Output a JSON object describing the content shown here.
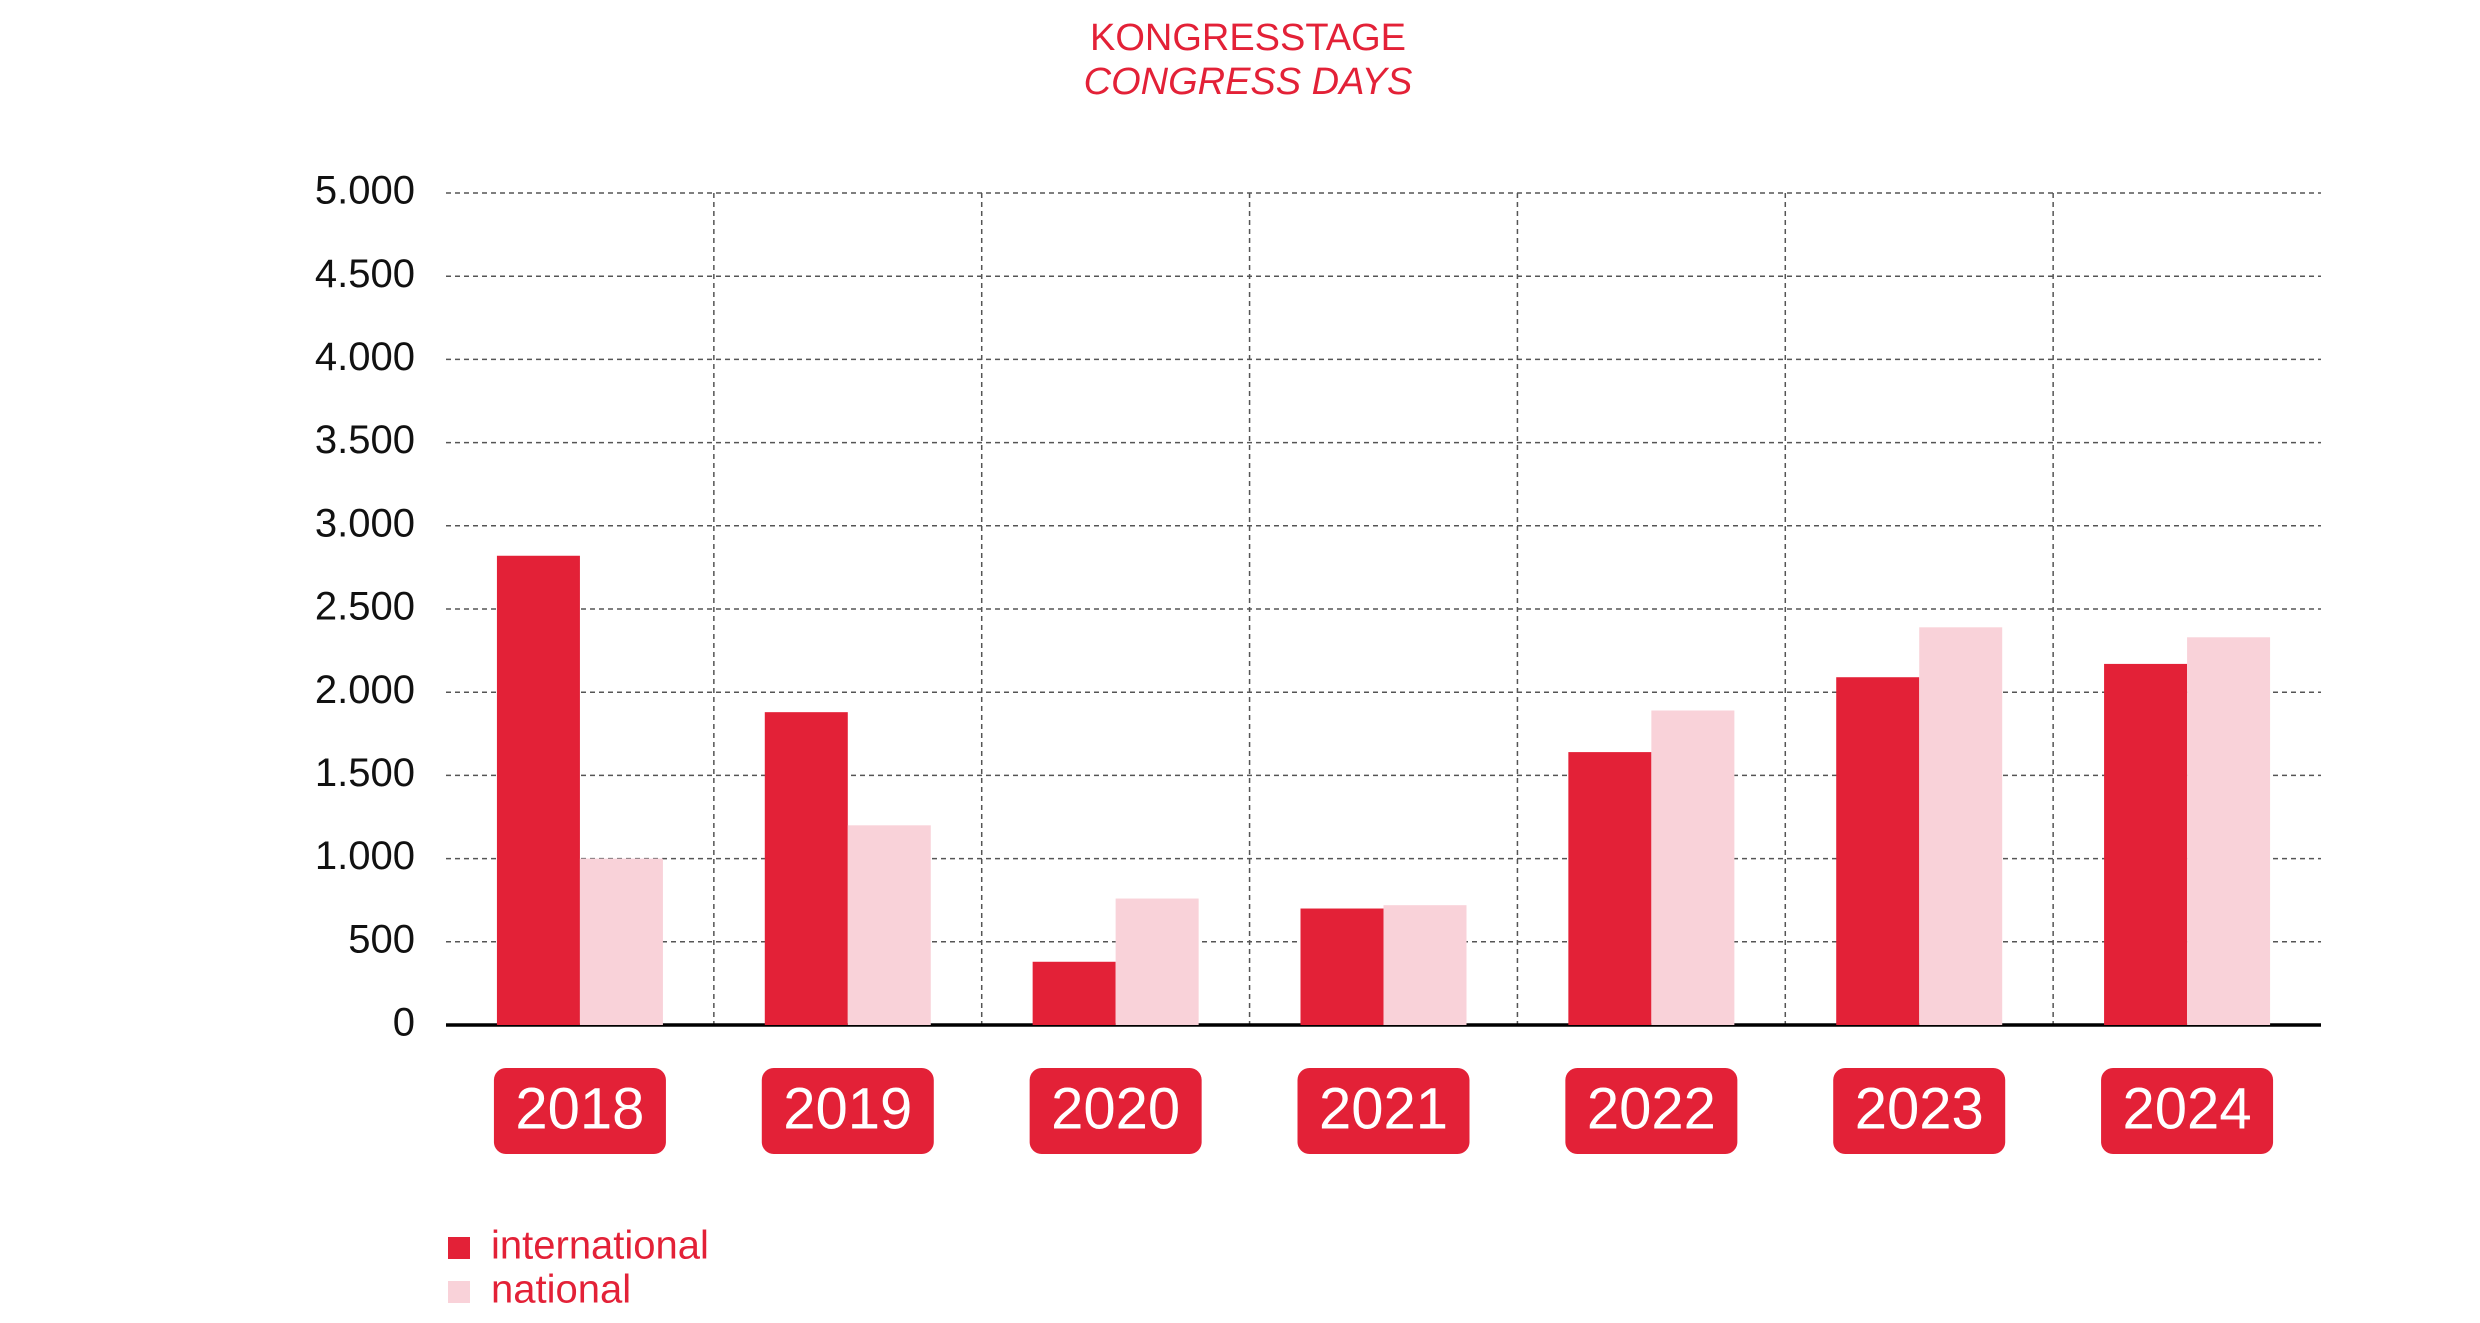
{
  "chart_data": {
    "type": "bar",
    "title": "KONGRESSTAGE",
    "subtitle": "CONGRESS DAYS",
    "categories": [
      "2018",
      "2019",
      "2020",
      "2021",
      "2022",
      "2023",
      "2024"
    ],
    "series": [
      {
        "name": "international",
        "color": "#e32137",
        "values": [
          2820,
          1880,
          380,
          700,
          1640,
          2090,
          2170
        ]
      },
      {
        "name": "national",
        "color": "#f9d2d9",
        "values": [
          1000,
          1200,
          760,
          720,
          1890,
          2390,
          2330
        ]
      }
    ],
    "ylim": [
      0,
      5000
    ],
    "yticks": [
      0,
      500,
      {
        "value": 1000,
        "label": "1.000"
      },
      {
        "value": 1500,
        "label": "1.500"
      },
      {
        "value": 2000,
        "label": "2.000"
      },
      {
        "value": 2500,
        "label": "2.500"
      },
      {
        "value": 3000,
        "label": "3.000"
      },
      {
        "value": 3500,
        "label": "3.500"
      },
      {
        "value": 4000,
        "label": "4.000"
      },
      {
        "value": 4500,
        "label": "4.500"
      },
      {
        "value": 5000,
        "label": "5.000"
      }
    ],
    "grid": true,
    "legend": "bottom-left"
  }
}
